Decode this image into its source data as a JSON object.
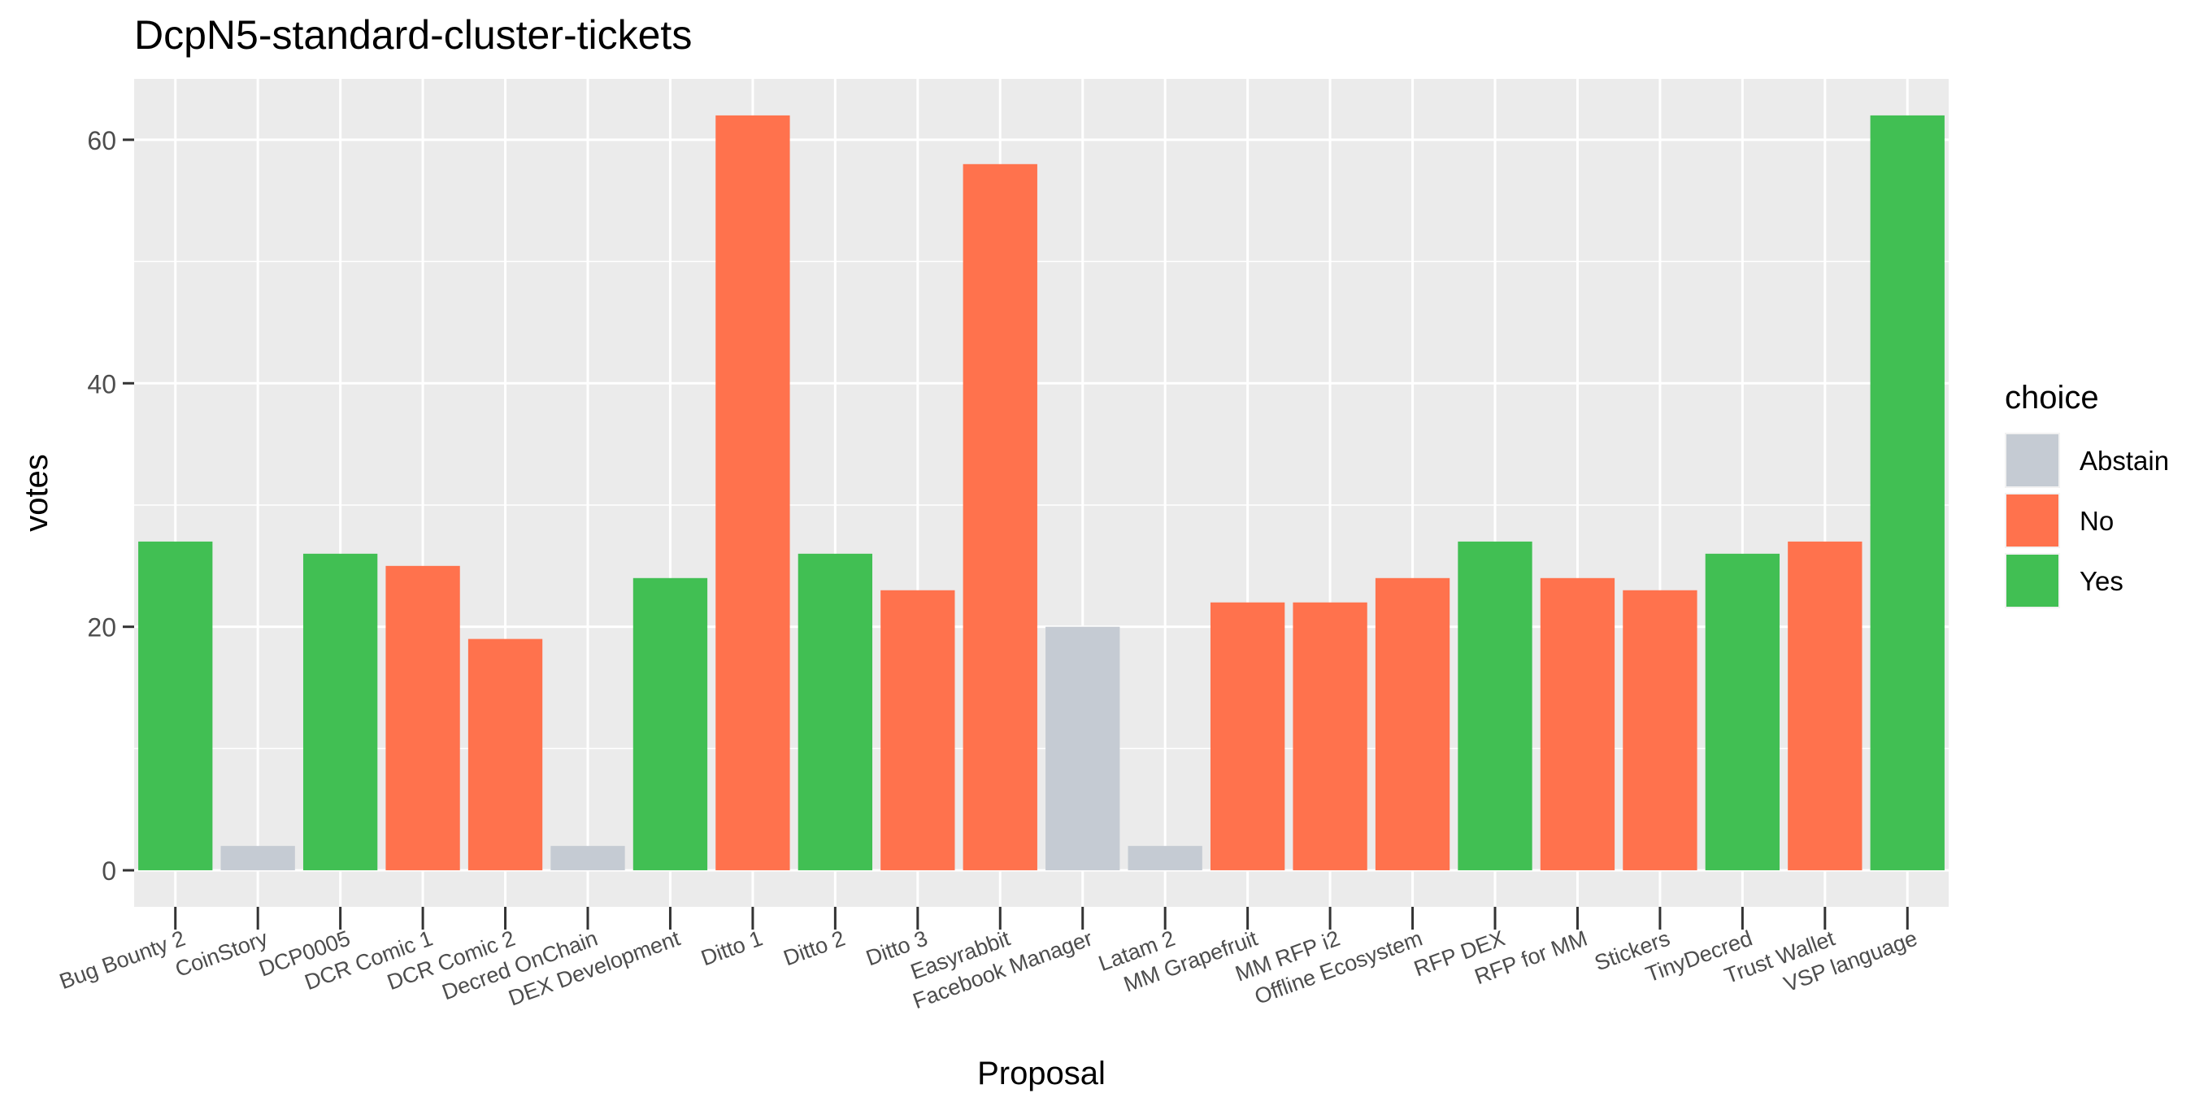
{
  "chart_data": {
    "type": "bar",
    "title": "DcpN5-standard-cluster-tickets",
    "xlabel": "Proposal",
    "ylabel": "votes",
    "ylim": [
      -3,
      65
    ],
    "yticks": [
      0,
      20,
      40,
      60
    ],
    "grid": true,
    "legend_title": "choice",
    "legend_position": "right",
    "categories": [
      "Bug Bounty 2",
      "CoinStory",
      "DCP0005",
      "DCR Comic 1",
      "DCR Comic 2",
      "Decred OnChain",
      "DEX Development",
      "Ditto 1",
      "Ditto 2",
      "Ditto 3",
      "Easyrabbit",
      "Facebook Manager",
      "Latam 2",
      "MM Grapefruit",
      "MM RFP i2",
      "Offline Ecosystem",
      "RFP DEX",
      "RFP for MM",
      "Stickers",
      "TinyDecred",
      "Trust Wallet",
      "VSP language"
    ],
    "values": [
      27,
      2,
      26,
      25,
      19,
      2,
      24,
      62,
      26,
      23,
      58,
      20,
      2,
      22,
      22,
      24,
      27,
      24,
      23,
      26,
      27,
      62
    ],
    "choices": [
      "Yes",
      "Abstain",
      "Yes",
      "No",
      "No",
      "Abstain",
      "Yes",
      "No",
      "Yes",
      "No",
      "No",
      "Abstain",
      "Abstain",
      "No",
      "No",
      "No",
      "Yes",
      "No",
      "No",
      "Yes",
      "No",
      "Yes"
    ],
    "legend": [
      {
        "name": "Abstain",
        "color": "#C5CBD3"
      },
      {
        "name": "No",
        "color": "#FF724D"
      },
      {
        "name": "Yes",
        "color": "#41BF53"
      }
    ]
  }
}
